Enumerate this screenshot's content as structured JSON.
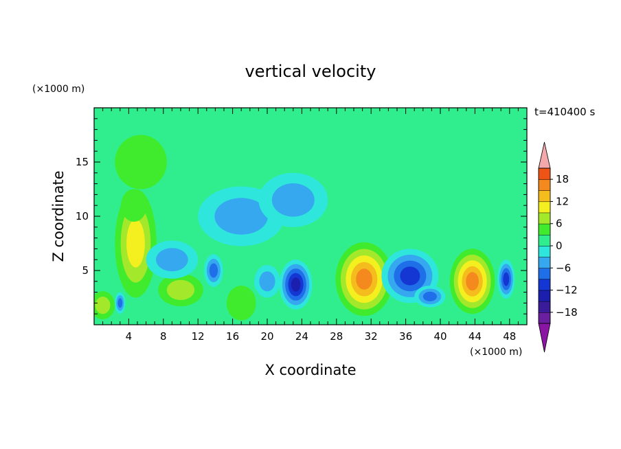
{
  "chart_data": {
    "type": "heatmap",
    "title": "vertical velocity",
    "xlabel": "X coordinate",
    "ylabel": "Z coordinate",
    "x_unit": "(×1000 m)",
    "y_unit": "(×1000 m)",
    "time_label": "t=410400 s",
    "xlim": [
      0,
      50
    ],
    "ylim": [
      0,
      20
    ],
    "x_ticks": [
      4,
      8,
      12,
      16,
      20,
      24,
      28,
      32,
      36,
      40,
      44,
      48
    ],
    "y_ticks": [
      5,
      10,
      15
    ],
    "colorbar": {
      "tick_labels": [
        18,
        12,
        6,
        0,
        -6,
        -12,
        -18
      ],
      "levels": [
        -21,
        -18,
        -15,
        -12,
        -9,
        -6,
        -3,
        0,
        3,
        6,
        9,
        12,
        15,
        18,
        21
      ],
      "colors": [
        "#6a1fa0",
        "#3a1b9a",
        "#1c1fae",
        "#1436d2",
        "#1f6fe8",
        "#35a8f0",
        "#2fe6dc",
        "#30ee8e",
        "#40ea2c",
        "#a4e82c",
        "#f4f020",
        "#f5bc1e",
        "#f48a1e",
        "#ef5417",
        "#e8201a",
        "#f0a8a8"
      ],
      "under_color": "#8a14a4",
      "over_color": "#f3a9ab"
    },
    "features": [
      {
        "x": 4.8,
        "z": 7.5,
        "w": 2.4,
        "h": 10.0,
        "value": 11
      },
      {
        "x": 5.4,
        "z": 15.0,
        "w": 3.0,
        "h": 5.0,
        "value": 5
      },
      {
        "x": 4.6,
        "z": 11.0,
        "w": 1.5,
        "h": 3.0,
        "value": 4
      },
      {
        "x": 1.0,
        "z": 1.8,
        "w": 1.4,
        "h": 2.6,
        "value": 6
      },
      {
        "x": 3.0,
        "z": 2.0,
        "w": 0.6,
        "h": 2.0,
        "value": -8
      },
      {
        "x": 10.0,
        "z": 3.2,
        "w": 2.6,
        "h": 3.0,
        "value": 6
      },
      {
        "x": 9.0,
        "z": 6.0,
        "w": 3.0,
        "h": 3.5,
        "value": -5
      },
      {
        "x": 13.8,
        "z": 5.0,
        "w": 1.1,
        "h": 3.0,
        "value": -7
      },
      {
        "x": 17.0,
        "z": 2.0,
        "w": 1.7,
        "h": 3.2,
        "value": 5
      },
      {
        "x": 23.3,
        "z": 3.7,
        "w": 1.9,
        "h": 4.6,
        "value": -14
      },
      {
        "x": 20.0,
        "z": 4.0,
        "w": 1.5,
        "h": 3.0,
        "value": -5
      },
      {
        "x": 31.2,
        "z": 4.2,
        "w": 3.3,
        "h": 6.8,
        "value": 17
      },
      {
        "x": 29.6,
        "z": 14.0,
        "w": 2.4,
        "h": 6.0,
        "value": 2
      },
      {
        "x": 36.5,
        "z": 4.5,
        "w": 3.3,
        "h": 5.0,
        "value": -12
      },
      {
        "x": 38.8,
        "z": 2.6,
        "w": 1.8,
        "h": 2.0,
        "value": -9
      },
      {
        "x": 43.7,
        "z": 4.0,
        "w": 2.6,
        "h": 6.0,
        "value": 16
      },
      {
        "x": 47.6,
        "z": 4.2,
        "w": 1.0,
        "h": 3.6,
        "value": -12
      },
      {
        "x": 48.5,
        "z": 15.0,
        "w": 3.0,
        "h": 6.0,
        "value": 2
      },
      {
        "x": 17.0,
        "z": 10.0,
        "w": 5.0,
        "h": 5.5,
        "value": -4
      },
      {
        "x": 23.0,
        "z": 11.5,
        "w": 4.0,
        "h": 5.0,
        "value": -3.5
      }
    ]
  }
}
